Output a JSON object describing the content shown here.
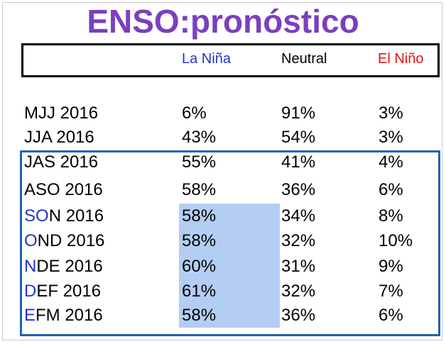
{
  "title": "ENSO:pronóstico",
  "colors": {
    "title": "#7b3fbe",
    "la_nina": "#2036c8",
    "neutral": "#000000",
    "el_nino": "#e01515",
    "highlight": "#b4cdf3",
    "box_border": "#1f63b6"
  },
  "chart_data": {
    "type": "table",
    "title": "ENSO:pronóstico",
    "columns": [
      "",
      "La Niña",
      "Neutral",
      "El Niño"
    ],
    "rows": [
      {
        "season": "MJJ 2016",
        "la_nina": "6%",
        "neutral": "91%",
        "el_nino": "3%"
      },
      {
        "season": "JJA 2016",
        "la_nina": "43%",
        "neutral": "54%",
        "el_nino": "3%"
      },
      {
        "season": "JAS 2016",
        "la_nina": "55%",
        "neutral": "41%",
        "el_nino": "4%"
      },
      {
        "season": "ASO 2016",
        "la_nina": "58%",
        "neutral": "36%",
        "el_nino": "6%"
      },
      {
        "season": "SON 2016",
        "la_nina": "58%",
        "neutral": "34%",
        "el_nino": "8%"
      },
      {
        "season": "OND 2016",
        "la_nina": "58%",
        "neutral": "32%",
        "el_nino": "10%"
      },
      {
        "season": "NDE 2016",
        "la_nina": "60%",
        "neutral": "31%",
        "el_nino": "9%"
      },
      {
        "season": "DEF 2016",
        "la_nina": "61%",
        "neutral": "32%",
        "el_nino": "7%"
      },
      {
        "season": "EFM 2016",
        "la_nina": "58%",
        "neutral": "36%",
        "el_nino": "6%"
      }
    ]
  }
}
